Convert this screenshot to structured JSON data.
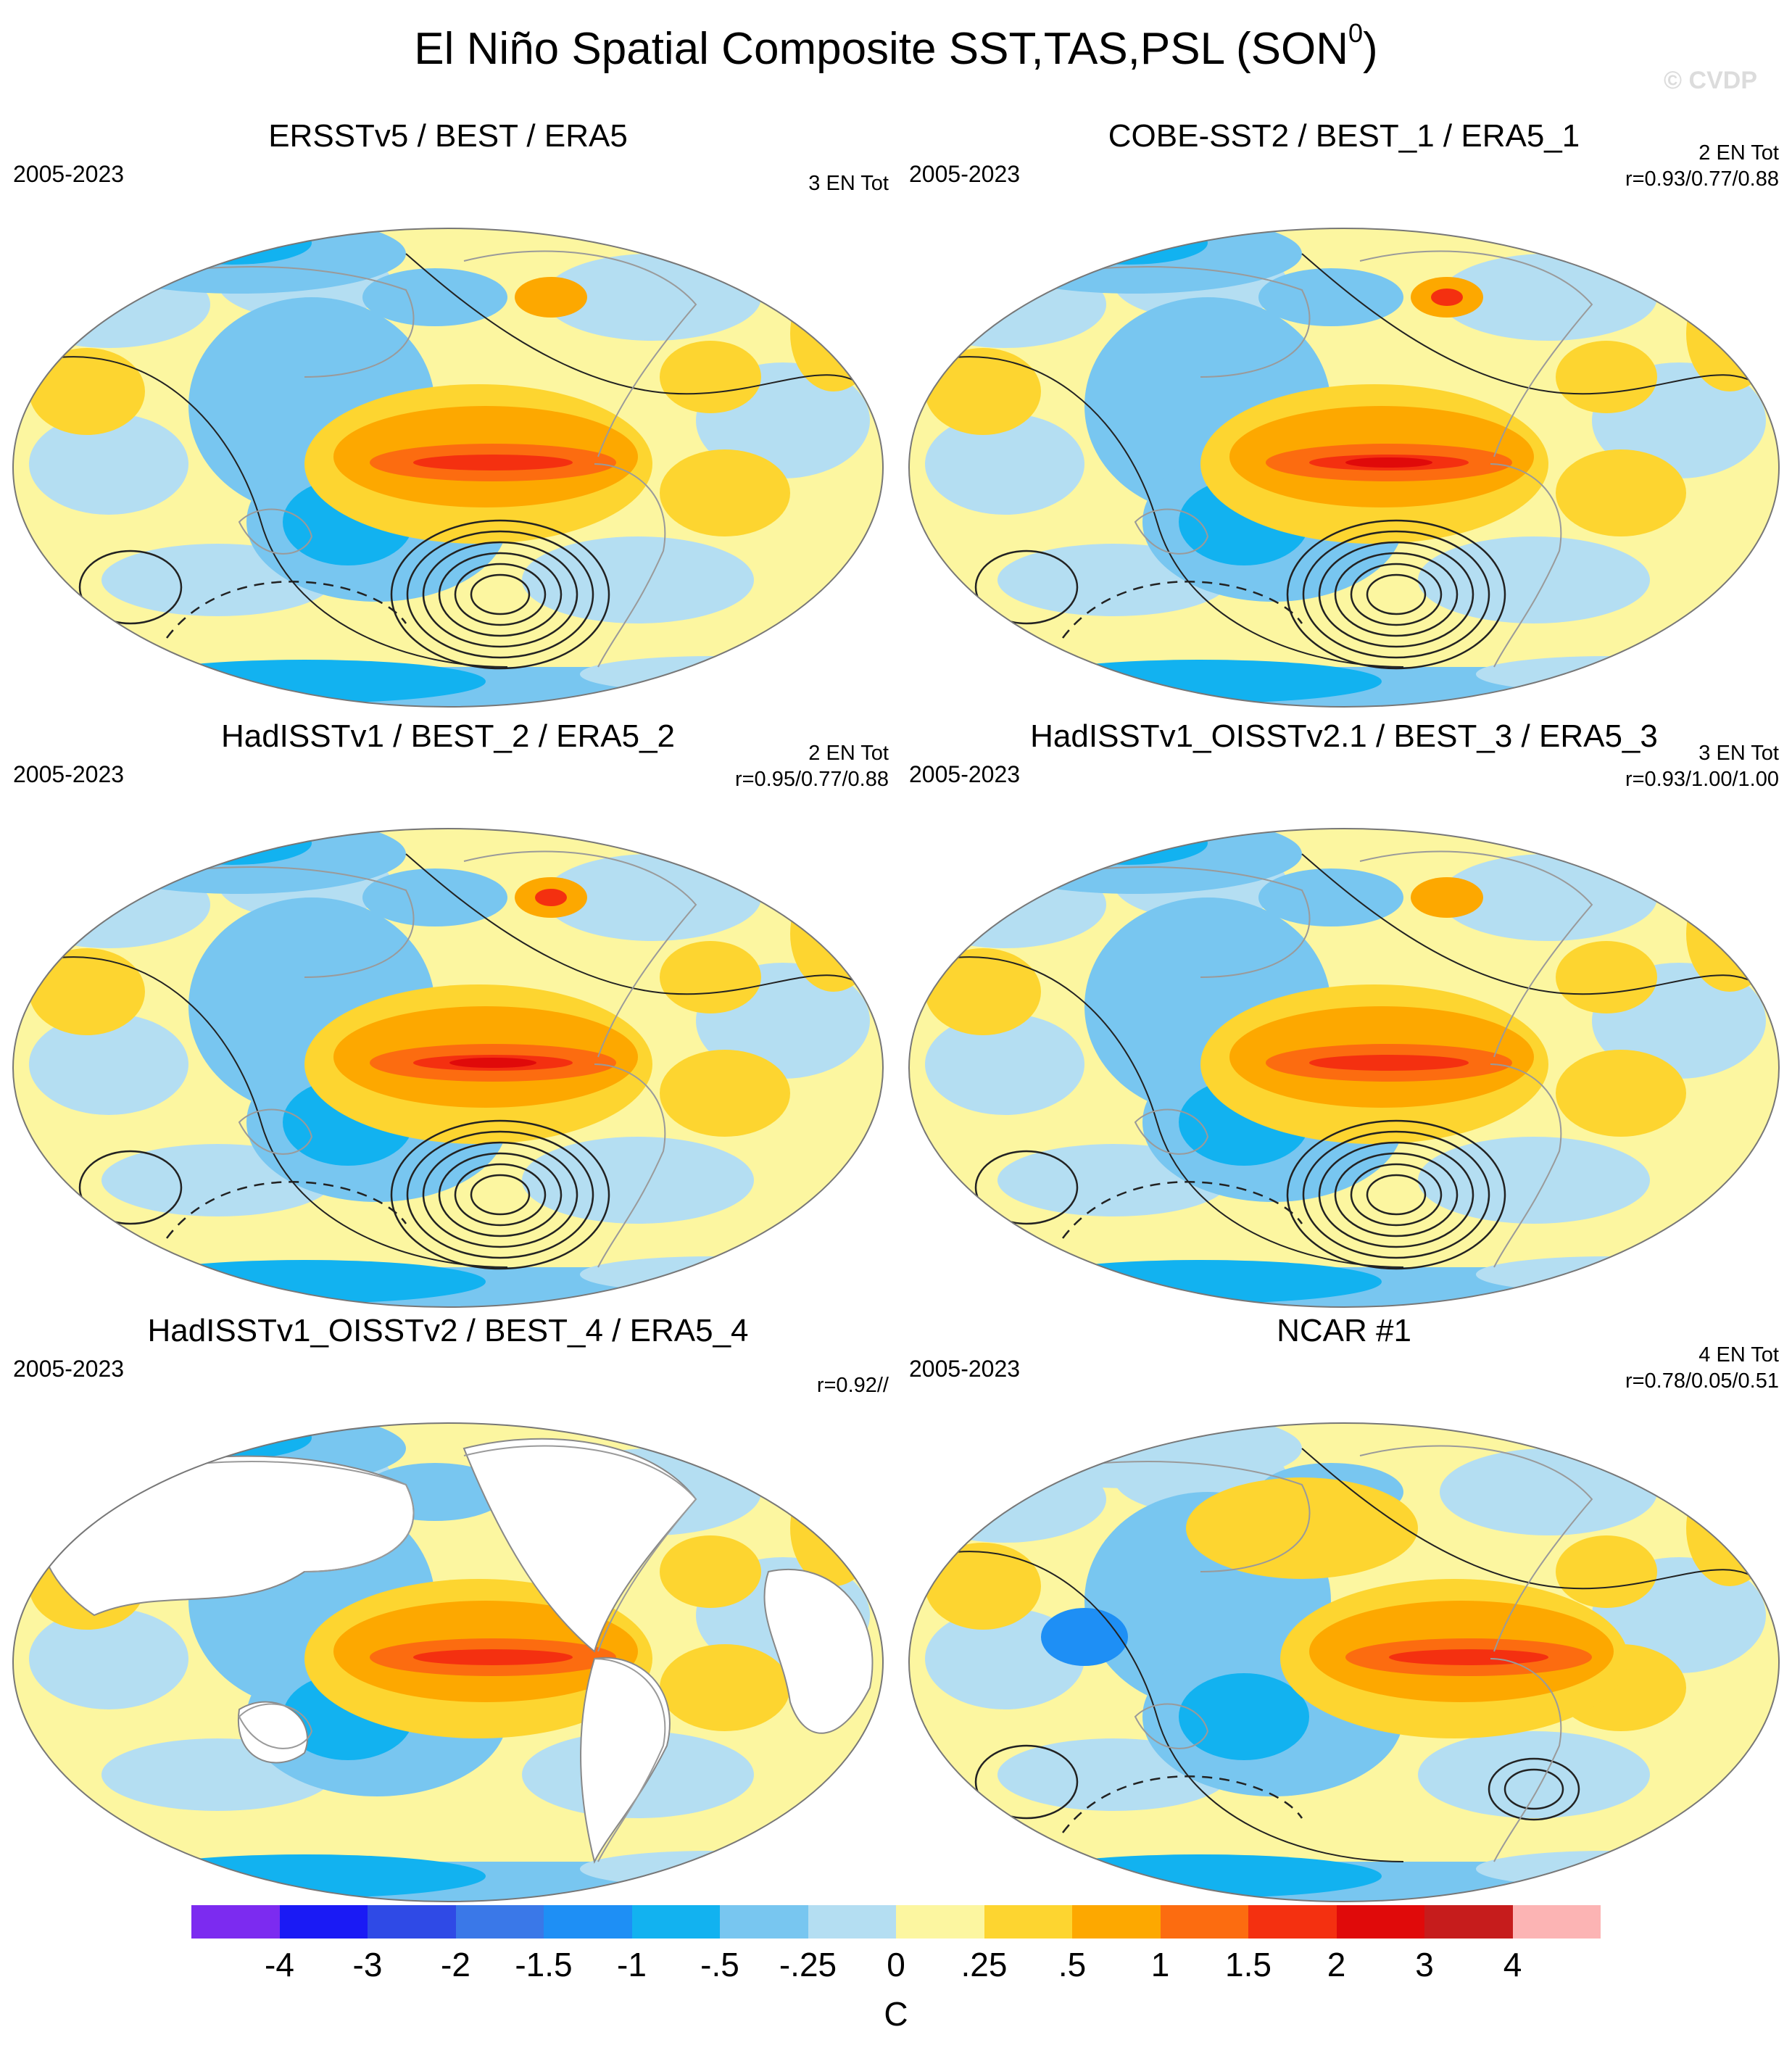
{
  "title": "El Niño Spatial Composite SST,TAS,PSL (SON",
  "title_superscript": "0",
  "title_suffix": ")",
  "watermark": "© CVDP",
  "panels": [
    {
      "title": "ERSSTv5 / BEST / ERA5",
      "period": "2005-2023",
      "tot": "3 EN Tot",
      "r": "",
      "variant": "a",
      "mask": false,
      "contours": true
    },
    {
      "title": "COBE-SST2 / BEST_1 / ERA5_1",
      "period": "2005-2023",
      "tot": "2 EN Tot",
      "r": "r=0.93/0.77/0.88",
      "variant": "b",
      "mask": false,
      "contours": true
    },
    {
      "title": "HadISSTv1 / BEST_2 / ERA5_2",
      "period": "2005-2023",
      "tot": "2 EN Tot",
      "r": "r=0.95/0.77/0.88",
      "variant": "b",
      "mask": false,
      "contours": true
    },
    {
      "title": "HadISSTv1_OISSTv2.1 / BEST_3 / ERA5_3",
      "period": "2005-2023",
      "tot": "3 EN Tot",
      "r": "r=0.93/1.00/1.00",
      "variant": "a",
      "mask": false,
      "contours": true
    },
    {
      "title": "HadISSTv1_OISSTv2 / BEST_4 / ERA5_4",
      "period": "2005-2023",
      "tot": "",
      "r": "r=0.92//",
      "variant": "a",
      "mask": true,
      "contours": false
    },
    {
      "title": "NCAR #1",
      "period": "2005-2023",
      "tot": "4 EN Tot",
      "r": "r=0.78/0.05/0.51",
      "variant": "c",
      "mask": false,
      "contours": true
    }
  ],
  "colorbar": {
    "unit": "C",
    "labels": [
      "-4",
      "-3",
      "-2",
      "-1.5",
      "-1",
      "-.5",
      "-.25",
      "0",
      ".25",
      ".5",
      "1",
      "1.5",
      "2",
      "3",
      "4"
    ],
    "colors": [
      "#7c2bf0",
      "#1a1af5",
      "#2f4ae6",
      "#3a78e8",
      "#1e8ff5",
      "#12b2f0",
      "#78c6f0",
      "#b4def2",
      "#fcf6a0",
      "#fdd530",
      "#fda800",
      "#fc6c10",
      "#f43010",
      "#e00a0a",
      "#c61c1c",
      "#fcb4b4"
    ]
  }
}
